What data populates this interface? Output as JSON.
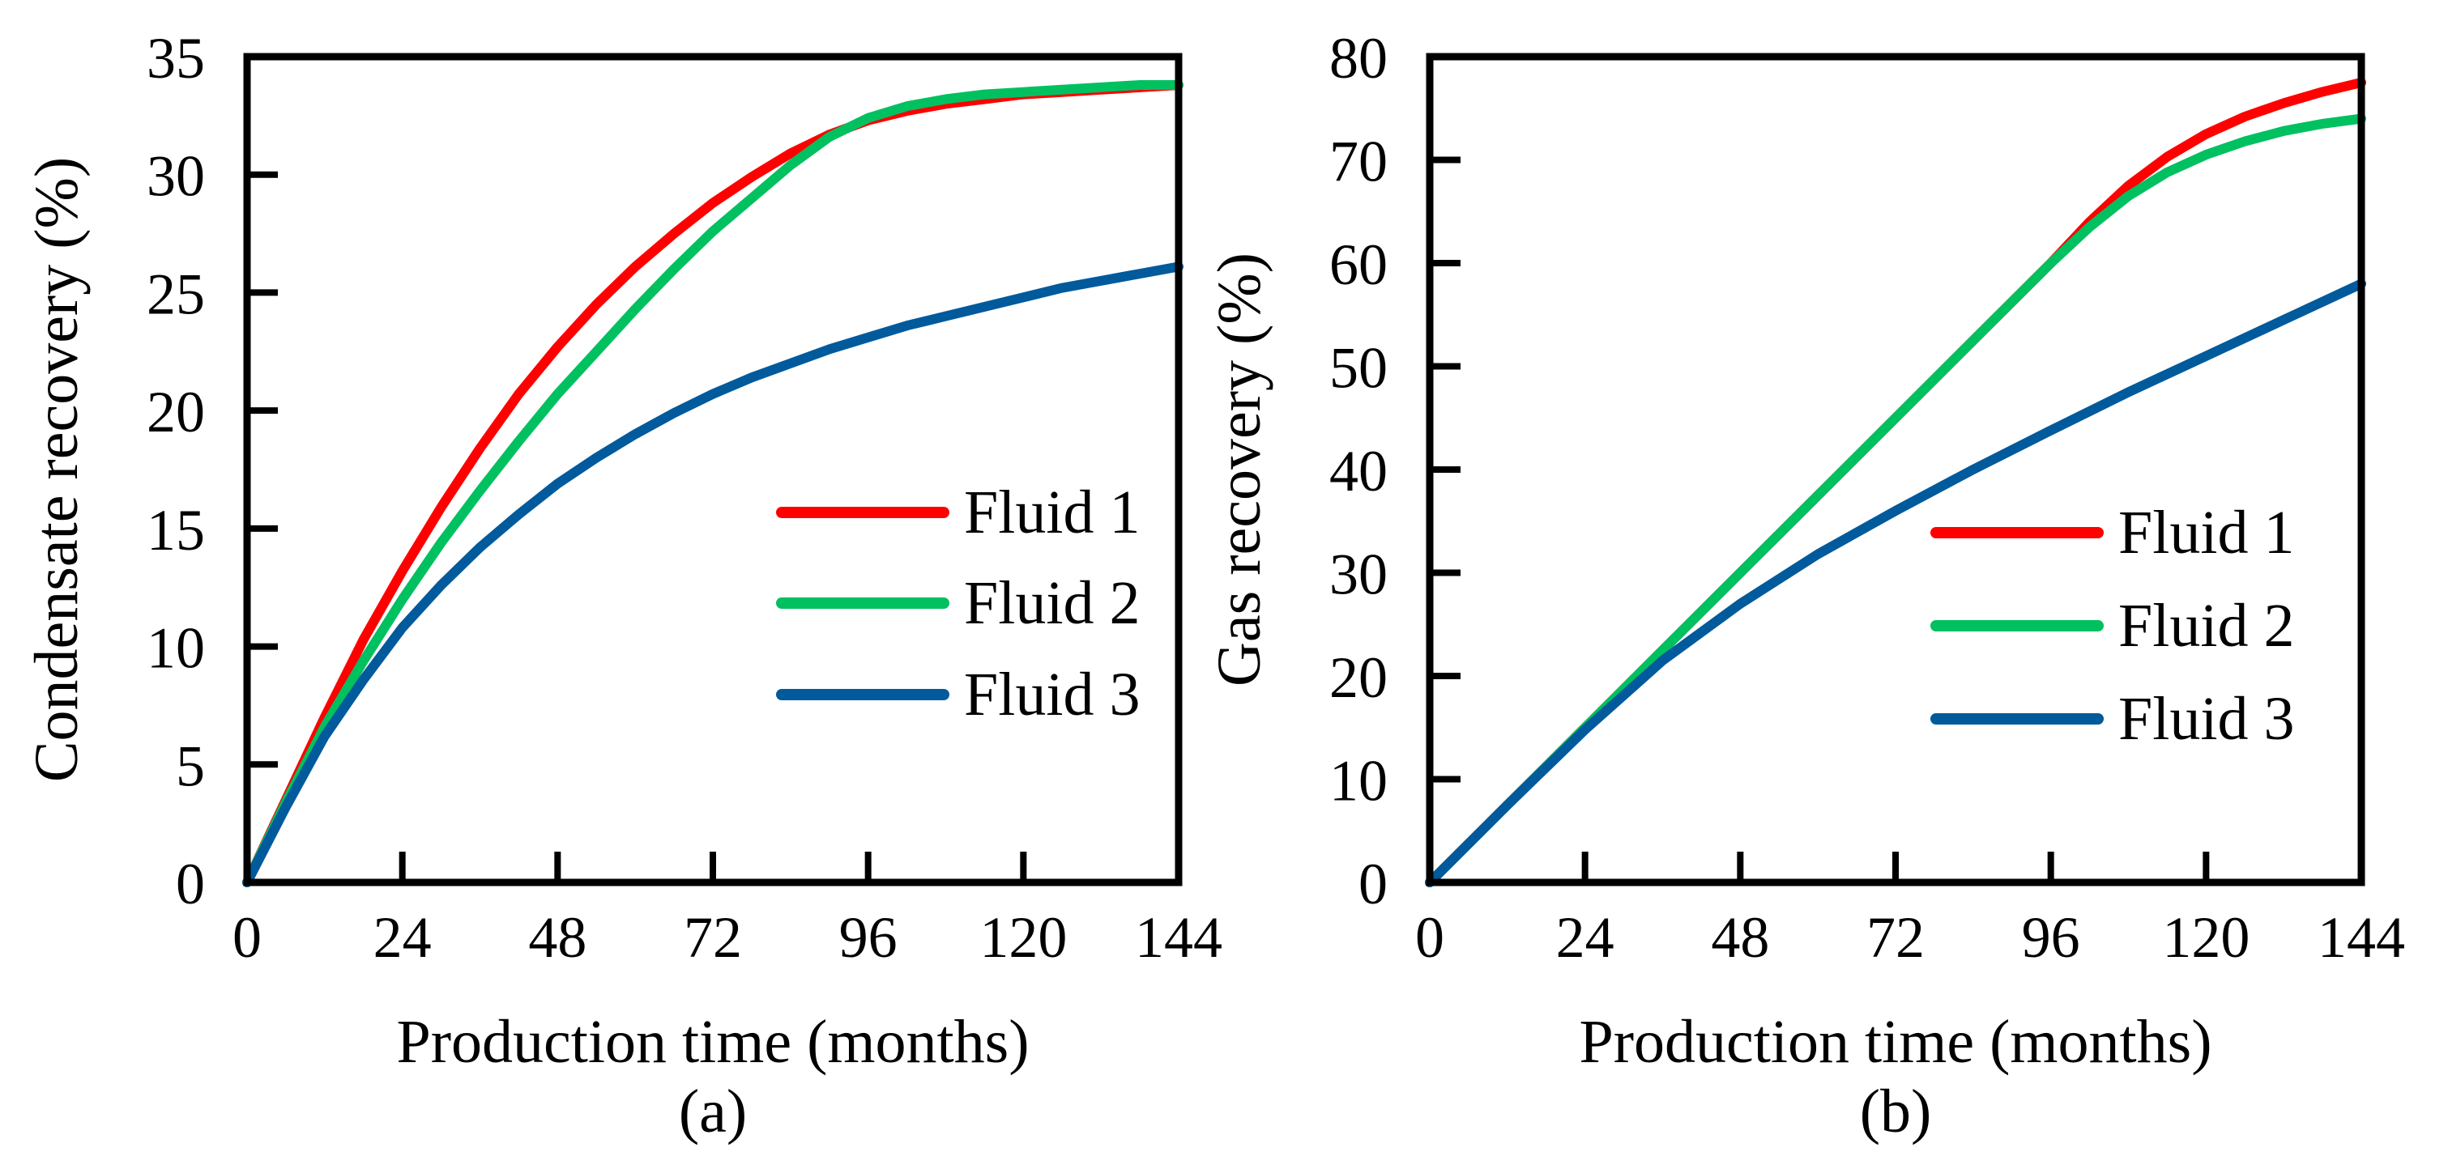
{
  "colors": {
    "fluid1": "#ff0000",
    "fluid2": "#00c060",
    "fluid3": "#005a9c"
  },
  "chart_data": [
    {
      "type": "line",
      "panel_label": "(a)",
      "xlabel": "Production time (months)",
      "ylabel": "Condensate recovery (%)",
      "xlim": [
        0,
        144
      ],
      "ylim": [
        0,
        35
      ],
      "xticks": [
        0,
        24,
        48,
        72,
        96,
        120,
        144
      ],
      "yticks": [
        0,
        5,
        10,
        15,
        20,
        25,
        30,
        35
      ],
      "legend_position": "center-right",
      "series": [
        {
          "name": "Fluid 1",
          "color": "#ff0000",
          "x": [
            0,
            6,
            12,
            18,
            24,
            30,
            36,
            42,
            48,
            54,
            60,
            66,
            72,
            78,
            84,
            90,
            96,
            102,
            108,
            114,
            120,
            126,
            132,
            138,
            144
          ],
          "y": [
            0,
            3.5,
            7.0,
            10.3,
            13.2,
            15.9,
            18.4,
            20.7,
            22.7,
            24.5,
            26.1,
            27.5,
            28.8,
            29.9,
            30.9,
            31.7,
            32.3,
            32.7,
            33.0,
            33.2,
            33.4,
            33.5,
            33.6,
            33.7,
            33.8
          ]
        },
        {
          "name": "Fluid 2",
          "color": "#00c060",
          "x": [
            0,
            6,
            12,
            18,
            24,
            30,
            36,
            42,
            48,
            54,
            60,
            66,
            72,
            78,
            84,
            90,
            96,
            102,
            108,
            114,
            120,
            126,
            132,
            138,
            144
          ],
          "y": [
            0,
            3.4,
            6.6,
            9.4,
            12.0,
            14.4,
            16.6,
            18.7,
            20.7,
            22.5,
            24.3,
            26.0,
            27.6,
            29.0,
            30.4,
            31.6,
            32.4,
            32.9,
            33.2,
            33.4,
            33.5,
            33.6,
            33.7,
            33.8,
            33.8
          ]
        },
        {
          "name": "Fluid 3",
          "color": "#005a9c",
          "x": [
            0,
            6,
            12,
            18,
            24,
            30,
            36,
            42,
            48,
            54,
            60,
            66,
            72,
            78,
            84,
            90,
            96,
            102,
            108,
            114,
            120,
            126,
            132,
            138,
            144
          ],
          "y": [
            0,
            3.2,
            6.2,
            8.6,
            10.8,
            12.6,
            14.2,
            15.6,
            16.9,
            18.0,
            19.0,
            19.9,
            20.7,
            21.4,
            22.0,
            22.6,
            23.1,
            23.6,
            24.0,
            24.4,
            24.8,
            25.2,
            25.5,
            25.8,
            26.1
          ]
        }
      ]
    },
    {
      "type": "line",
      "panel_label": "(b)",
      "xlabel": "Production time (months)",
      "ylabel": "Gas recovery (%)",
      "xlim": [
        0,
        144
      ],
      "ylim": [
        0,
        80
      ],
      "xticks": [
        0,
        24,
        48,
        72,
        96,
        120,
        144
      ],
      "yticks": [
        0,
        10,
        20,
        30,
        40,
        50,
        60,
        70,
        80
      ],
      "legend_position": "lower-right",
      "series": [
        {
          "name": "Fluid 1",
          "color": "#ff0000",
          "x": [
            0,
            12,
            24,
            36,
            48,
            60,
            72,
            84,
            96,
            102,
            108,
            114,
            120,
            126,
            132,
            138,
            144
          ],
          "y": [
            0,
            7.5,
            15.0,
            22.5,
            30.0,
            37.5,
            45.0,
            52.5,
            60.0,
            64.0,
            67.5,
            70.3,
            72.5,
            74.2,
            75.5,
            76.6,
            77.5
          ]
        },
        {
          "name": "Fluid 2",
          "color": "#00c060",
          "x": [
            0,
            12,
            24,
            36,
            48,
            60,
            72,
            84,
            96,
            102,
            108,
            114,
            120,
            126,
            132,
            138,
            144
          ],
          "y": [
            0,
            7.5,
            15.0,
            22.5,
            30.0,
            37.5,
            45.0,
            52.5,
            60.0,
            63.5,
            66.5,
            68.8,
            70.5,
            71.8,
            72.8,
            73.5,
            74.0
          ]
        },
        {
          "name": "Fluid 3",
          "color": "#005a9c",
          "x": [
            0,
            12,
            24,
            36,
            48,
            60,
            72,
            84,
            96,
            108,
            120,
            132,
            144
          ],
          "y": [
            0,
            7.5,
            14.8,
            21.5,
            27.0,
            31.8,
            36.0,
            40.0,
            43.8,
            47.5,
            51.0,
            54.5,
            58.0
          ]
        }
      ]
    }
  ]
}
